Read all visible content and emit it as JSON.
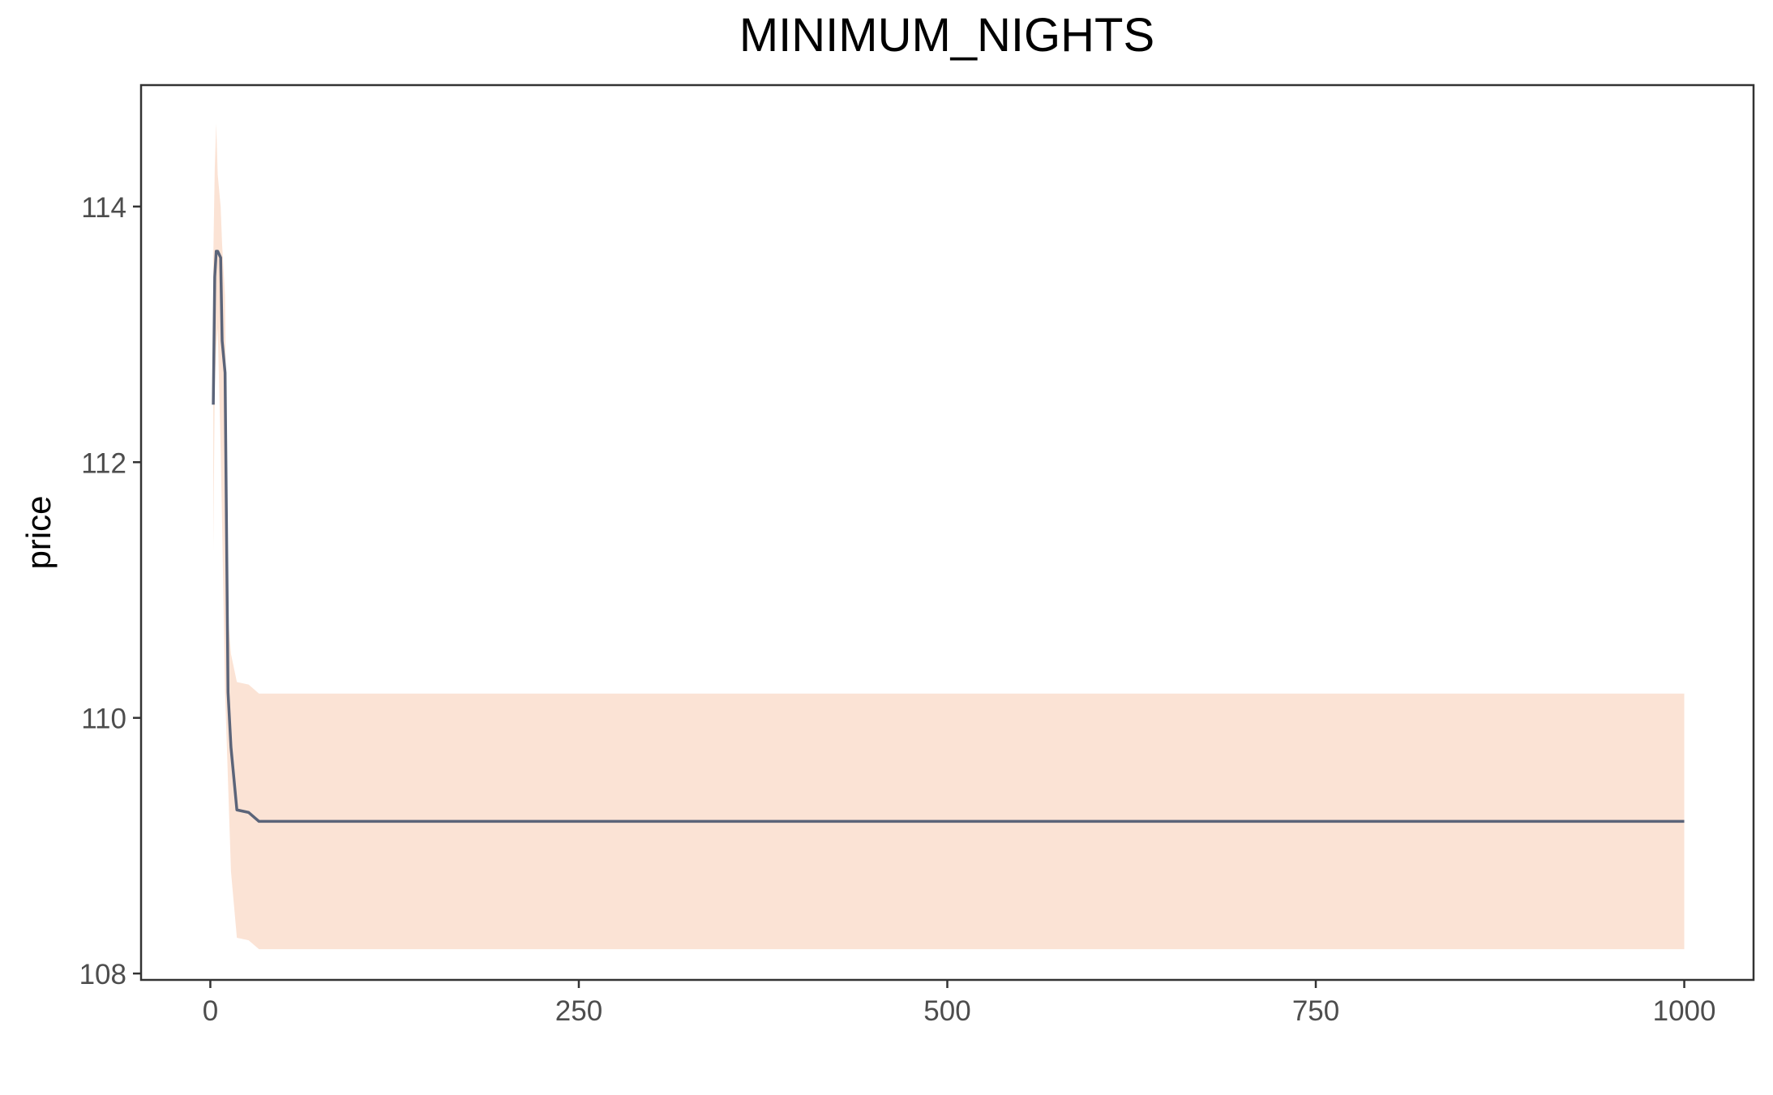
{
  "chart_data": {
    "type": "area",
    "title": "MINIMUM_NIGHTS",
    "xlabel": "",
    "ylabel": "price",
    "xlim": [
      -47,
      1047
    ],
    "ylim": [
      107.95,
      114.95
    ],
    "x_ticks": [
      0,
      250,
      500,
      750,
      1000
    ],
    "y_ticks": [
      108,
      110,
      112,
      114
    ],
    "grid": false,
    "legend": "none",
    "series": [
      {
        "kind": "ribbon",
        "color": "#FBE3D5",
        "x": [
          2,
          3,
          4,
          5,
          7,
          8,
          10,
          12,
          14,
          18,
          26,
          33,
          1000
        ],
        "upper": [
          113.6,
          114.3,
          114.65,
          114.25,
          114.0,
          113.7,
          113.3,
          110.8,
          110.5,
          110.28,
          110.26,
          110.19,
          110.19
        ],
        "lower": [
          111.3,
          112.6,
          112.9,
          113.05,
          112.1,
          111.5,
          110.2,
          109.5,
          108.8,
          108.28,
          108.26,
          108.19,
          108.19
        ]
      },
      {
        "kind": "line",
        "color": "#5B6479",
        "x": [
          2,
          3,
          4,
          5,
          7,
          8,
          10,
          12,
          14,
          18,
          26,
          33,
          1000
        ],
        "y": [
          112.45,
          113.45,
          113.65,
          113.65,
          113.6,
          112.95,
          112.7,
          110.2,
          109.77,
          109.28,
          109.26,
          109.19,
          109.19
        ]
      }
    ]
  }
}
